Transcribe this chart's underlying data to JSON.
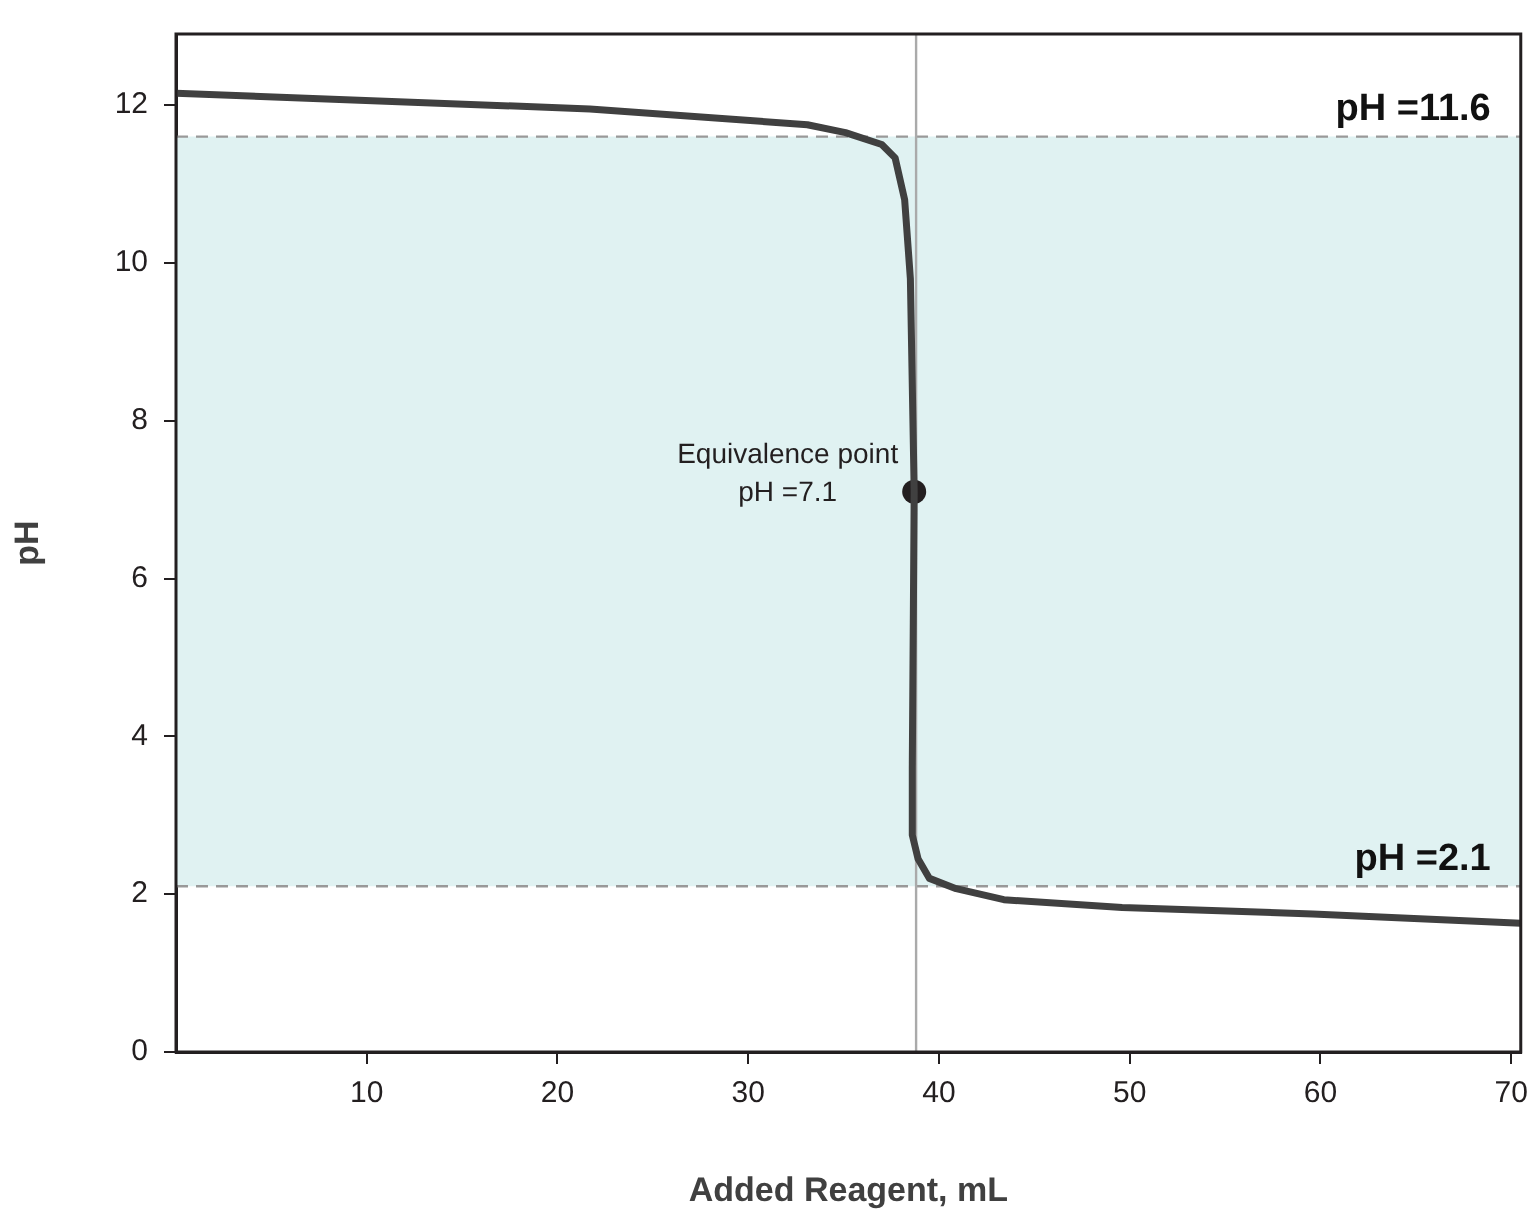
{
  "chart_data": {
    "type": "line",
    "xlabel": "Added Reagent, mL",
    "ylabel": "pH",
    "xlim": [
      0,
      70.5
    ],
    "xticks": [
      10,
      20,
      30,
      40,
      50,
      60,
      70
    ],
    "ylim": [
      0,
      12.9
    ],
    "yticks": [
      0,
      2,
      4,
      6,
      8,
      10,
      12
    ],
    "grid": false,
    "legend": false,
    "marker": "none",
    "line_style": "solid",
    "series": [
      {
        "color": "#404040",
        "x": [
          0,
          21.7,
          33.1,
          35.1,
          37,
          37.7,
          38.2,
          38.5,
          38.7,
          38.6,
          38.6,
          38.9,
          39.5,
          40.9,
          43.4,
          49.6,
          59.6,
          70.5
        ],
        "values": [
          12.15,
          11.95,
          11.75,
          11.65,
          11.5,
          11.33,
          10.8,
          9.8,
          7.1,
          3.6,
          2.75,
          2.45,
          2.2,
          2.07,
          1.93,
          1.83,
          1.75,
          1.63
        ]
      },
      {
        "type": "scatter",
        "marker": "circle",
        "color": "#231f20",
        "x": [
          38.7
        ],
        "values": [
          7.1
        ]
      }
    ],
    "bands": [
      {
        "axis": "y",
        "from": 2.1,
        "to": 11.6,
        "color": "#e0f2f2"
      }
    ],
    "ref_lines": [
      {
        "axis": "y",
        "value": 11.6,
        "label": "pH =11.6",
        "color": "#999999",
        "line_style": "dashed"
      },
      {
        "axis": "y",
        "value": 2.1,
        "label": "pH =2.1",
        "color": "#999999",
        "line_style": "dashed"
      },
      {
        "axis": "x",
        "value": 38.8,
        "color": "#aaaaaa",
        "line_style": "solid"
      }
    ],
    "annotations": [
      {
        "text": "Equivalence point\npH =7.1",
        "x": 38.7,
        "y": 7.1
      }
    ]
  }
}
